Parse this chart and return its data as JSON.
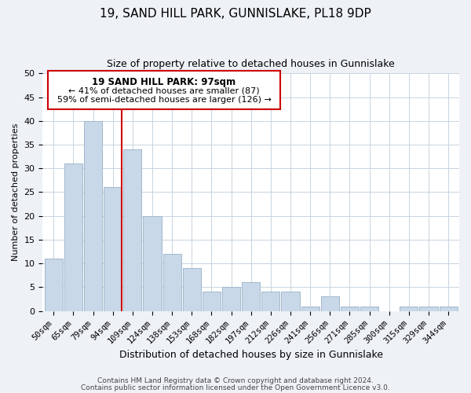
{
  "title": "19, SAND HILL PARK, GUNNISLAKE, PL18 9DP",
  "subtitle": "Size of property relative to detached houses in Gunnislake",
  "xlabel": "Distribution of detached houses by size in Gunnislake",
  "ylabel": "Number of detached properties",
  "bin_labels": [
    "50sqm",
    "65sqm",
    "79sqm",
    "94sqm",
    "109sqm",
    "124sqm",
    "138sqm",
    "153sqm",
    "168sqm",
    "182sqm",
    "197sqm",
    "212sqm",
    "226sqm",
    "241sqm",
    "256sqm",
    "271sqm",
    "285sqm",
    "300sqm",
    "315sqm",
    "329sqm",
    "344sqm"
  ],
  "bar_heights": [
    11,
    31,
    40,
    26,
    34,
    20,
    12,
    9,
    4,
    5,
    6,
    4,
    4,
    1,
    3,
    1,
    1,
    0,
    1,
    1,
    1
  ],
  "bar_color": "#c8d8e8",
  "bar_edge_color": "#a0b8cc",
  "vline_x_index": 3,
  "vline_color": "#cc0000",
  "ylim": [
    0,
    50
  ],
  "yticks": [
    0,
    5,
    10,
    15,
    20,
    25,
    30,
    35,
    40,
    45,
    50
  ],
  "annotation_title": "19 SAND HILL PARK: 97sqm",
  "annotation_line1": "← 41% of detached houses are smaller (87)",
  "annotation_line2": "59% of semi-detached houses are larger (126) →",
  "annotation_box_color": "#ffffff",
  "annotation_box_edge": "#cc0000",
  "footer1": "Contains HM Land Registry data © Crown copyright and database right 2024.",
  "footer2": "Contains public sector information licensed under the Open Government Licence v3.0.",
  "background_color": "#eef2f7",
  "plot_background": "#ffffff",
  "grid_color": "#c8d4e0",
  "title_fontsize": 11,
  "subtitle_fontsize": 9,
  "xlabel_fontsize": 9,
  "ylabel_fontsize": 8,
  "tick_fontsize": 8,
  "xtick_fontsize": 7.5,
  "ann_title_fontsize": 8.5,
  "ann_text_fontsize": 8
}
